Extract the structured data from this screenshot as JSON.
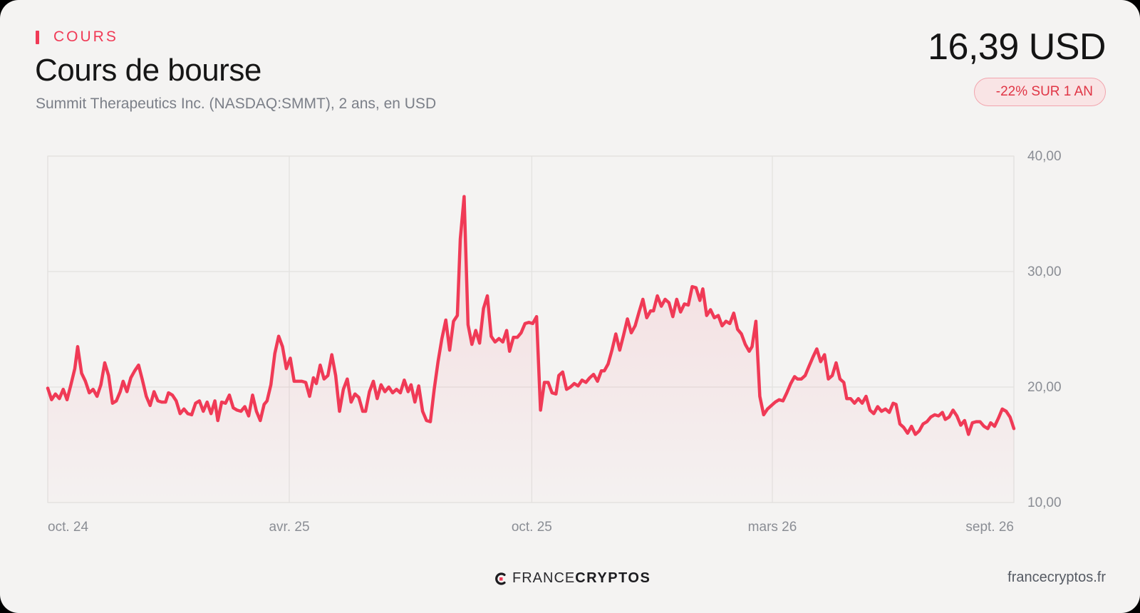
{
  "header": {
    "eyebrow": "COURS",
    "title": "Cours de bourse",
    "subtitle": "Summit Therapeutics Inc. (NASDAQ:SMMT), 2 ans, en USD",
    "price": "16,39 USD",
    "change_badge": "-22% SUR 1 AN"
  },
  "footer": {
    "logo_icon": "francecryptos-logo-icon",
    "logo_light": "FRANCE",
    "logo_bold": "CRYPTOS",
    "url": "francecryptos.fr"
  },
  "colors": {
    "accent": "#f03a56",
    "line": "#f03a56",
    "badge_text": "#e03545",
    "badge_bg": "#f9e4e5",
    "background": "#f4f3f2",
    "grid": "#e2e1df"
  },
  "chart_data": {
    "type": "line",
    "title": "Cours de bourse",
    "ylim": [
      10,
      40
    ],
    "y_ticks": [
      40,
      30,
      20,
      10
    ],
    "y_tick_labels": [
      "40,00",
      "30,00",
      "20,00",
      "10,00"
    ],
    "x_range": [
      0,
      100
    ],
    "x_ticks": [
      {
        "x": 0,
        "label": "oct. 24"
      },
      {
        "x": 25,
        "label": "avr. 25"
      },
      {
        "x": 50.1,
        "label": "oct. 25"
      },
      {
        "x": 75,
        "label": "mars 26"
      },
      {
        "x": 100,
        "label": "sept. 26"
      }
    ],
    "grid": true,
    "fill_under_line": true,
    "series": [
      {
        "points": [
          [
            0.0,
            19.9
          ],
          [
            0.4,
            18.9
          ],
          [
            0.8,
            19.4
          ],
          [
            1.2,
            19.0
          ],
          [
            1.6,
            19.8
          ],
          [
            2.0,
            18.9
          ],
          [
            2.4,
            20.2
          ],
          [
            2.8,
            21.6
          ],
          [
            3.1,
            23.5
          ],
          [
            3.5,
            21.2
          ],
          [
            3.9,
            20.5
          ],
          [
            4.3,
            19.5
          ],
          [
            4.7,
            19.8
          ],
          [
            5.1,
            19.2
          ],
          [
            5.5,
            20.2
          ],
          [
            5.9,
            22.1
          ],
          [
            6.3,
            21.0
          ],
          [
            6.7,
            18.6
          ],
          [
            7.1,
            18.8
          ],
          [
            7.5,
            19.6
          ],
          [
            7.8,
            20.5
          ],
          [
            8.2,
            19.6
          ],
          [
            8.6,
            20.8
          ],
          [
            9.0,
            21.4
          ],
          [
            9.4,
            21.9
          ],
          [
            9.8,
            20.6
          ],
          [
            10.2,
            19.2
          ],
          [
            10.6,
            18.4
          ],
          [
            11.0,
            19.6
          ],
          [
            11.4,
            18.8
          ],
          [
            11.8,
            18.7
          ],
          [
            12.2,
            18.7
          ],
          [
            12.5,
            19.5
          ],
          [
            12.9,
            19.3
          ],
          [
            13.3,
            18.8
          ],
          [
            13.7,
            17.7
          ],
          [
            14.1,
            18.1
          ],
          [
            14.5,
            17.7
          ],
          [
            14.9,
            17.6
          ],
          [
            15.3,
            18.6
          ],
          [
            15.7,
            18.8
          ],
          [
            16.1,
            17.9
          ],
          [
            16.5,
            18.7
          ],
          [
            16.9,
            17.7
          ],
          [
            17.3,
            18.8
          ],
          [
            17.6,
            17.1
          ],
          [
            18.0,
            18.7
          ],
          [
            18.4,
            18.6
          ],
          [
            18.8,
            19.3
          ],
          [
            19.2,
            18.2
          ],
          [
            19.6,
            18.0
          ],
          [
            20.0,
            17.9
          ],
          [
            20.4,
            18.3
          ],
          [
            20.8,
            17.5
          ],
          [
            21.2,
            19.3
          ],
          [
            21.6,
            17.9
          ],
          [
            22.0,
            17.1
          ],
          [
            22.4,
            18.5
          ],
          [
            22.7,
            18.8
          ],
          [
            23.1,
            20.2
          ],
          [
            23.5,
            22.9
          ],
          [
            23.9,
            24.4
          ],
          [
            24.3,
            23.5
          ],
          [
            24.7,
            21.6
          ],
          [
            25.1,
            22.5
          ],
          [
            25.5,
            20.5
          ],
          [
            25.9,
            20.5
          ],
          [
            26.3,
            20.5
          ],
          [
            26.7,
            20.4
          ],
          [
            27.1,
            19.2
          ],
          [
            27.5,
            20.8
          ],
          [
            27.8,
            20.3
          ],
          [
            28.2,
            21.9
          ],
          [
            28.6,
            20.7
          ],
          [
            29.0,
            21.0
          ],
          [
            29.4,
            22.8
          ],
          [
            29.8,
            21.0
          ],
          [
            30.2,
            17.9
          ],
          [
            30.6,
            19.8
          ],
          [
            31.0,
            20.7
          ],
          [
            31.4,
            18.7
          ],
          [
            31.8,
            19.4
          ],
          [
            32.2,
            19.1
          ],
          [
            32.6,
            17.9
          ],
          [
            32.9,
            17.9
          ],
          [
            33.3,
            19.6
          ],
          [
            33.7,
            20.5
          ],
          [
            34.1,
            19.0
          ],
          [
            34.5,
            20.2
          ],
          [
            34.9,
            19.6
          ],
          [
            35.3,
            20.0
          ],
          [
            35.7,
            19.5
          ],
          [
            36.1,
            19.8
          ],
          [
            36.5,
            19.5
          ],
          [
            36.9,
            20.6
          ],
          [
            37.3,
            19.6
          ],
          [
            37.6,
            20.2
          ],
          [
            38.0,
            18.7
          ],
          [
            38.4,
            20.1
          ],
          [
            38.8,
            17.9
          ],
          [
            39.2,
            17.1
          ],
          [
            39.6,
            17.0
          ],
          [
            40.0,
            19.8
          ],
          [
            40.4,
            22.2
          ],
          [
            40.8,
            24.2
          ],
          [
            41.2,
            25.8
          ],
          [
            41.6,
            23.2
          ],
          [
            42.0,
            25.7
          ],
          [
            42.4,
            26.2
          ],
          [
            42.7,
            32.8
          ],
          [
            43.1,
            36.5
          ],
          [
            43.5,
            25.4
          ],
          [
            43.9,
            23.7
          ],
          [
            44.3,
            24.9
          ],
          [
            44.7,
            23.8
          ],
          [
            45.1,
            26.8
          ],
          [
            45.5,
            27.9
          ],
          [
            45.9,
            24.4
          ],
          [
            46.3,
            23.9
          ],
          [
            46.7,
            24.2
          ],
          [
            47.1,
            23.9
          ],
          [
            47.5,
            24.9
          ],
          [
            47.8,
            23.1
          ],
          [
            48.2,
            24.3
          ],
          [
            48.6,
            24.3
          ],
          [
            49.0,
            24.7
          ],
          [
            49.4,
            25.5
          ],
          [
            49.8,
            25.6
          ],
          [
            50.2,
            25.5
          ],
          [
            50.6,
            26.1
          ],
          [
            51.0,
            18.0
          ],
          [
            51.4,
            20.4
          ],
          [
            51.8,
            20.4
          ],
          [
            52.2,
            19.5
          ],
          [
            52.6,
            19.4
          ],
          [
            52.9,
            21.0
          ],
          [
            53.3,
            21.3
          ],
          [
            53.7,
            19.8
          ],
          [
            54.1,
            20.0
          ],
          [
            54.5,
            20.3
          ],
          [
            54.9,
            20.1
          ],
          [
            55.3,
            20.6
          ],
          [
            55.7,
            20.4
          ],
          [
            56.1,
            20.8
          ],
          [
            56.5,
            21.1
          ],
          [
            56.9,
            20.5
          ],
          [
            57.3,
            21.4
          ],
          [
            57.6,
            21.4
          ],
          [
            58.0,
            22.0
          ],
          [
            58.4,
            23.2
          ],
          [
            58.8,
            24.6
          ],
          [
            59.2,
            23.2
          ],
          [
            59.6,
            24.5
          ],
          [
            60.0,
            25.9
          ],
          [
            60.4,
            24.7
          ],
          [
            60.8,
            25.3
          ],
          [
            61.2,
            26.5
          ],
          [
            61.6,
            27.6
          ],
          [
            62.0,
            26.0
          ],
          [
            62.4,
            26.6
          ],
          [
            62.7,
            26.6
          ],
          [
            63.1,
            27.9
          ],
          [
            63.5,
            27.0
          ],
          [
            63.9,
            27.6
          ],
          [
            64.3,
            27.3
          ],
          [
            64.7,
            26.1
          ],
          [
            65.1,
            27.6
          ],
          [
            65.5,
            26.5
          ],
          [
            65.9,
            27.2
          ],
          [
            66.3,
            27.1
          ],
          [
            66.7,
            28.7
          ],
          [
            67.1,
            28.6
          ],
          [
            67.5,
            27.5
          ],
          [
            67.8,
            28.5
          ],
          [
            68.2,
            26.2
          ],
          [
            68.6,
            26.7
          ],
          [
            69.0,
            26.0
          ],
          [
            69.4,
            26.2
          ],
          [
            69.8,
            25.3
          ],
          [
            70.2,
            25.7
          ],
          [
            70.6,
            25.5
          ],
          [
            71.0,
            26.4
          ],
          [
            71.4,
            25.0
          ],
          [
            71.8,
            24.6
          ],
          [
            72.2,
            23.7
          ],
          [
            72.6,
            23.1
          ],
          [
            72.9,
            23.5
          ],
          [
            73.3,
            25.7
          ],
          [
            73.7,
            19.2
          ],
          [
            74.1,
            17.6
          ],
          [
            74.5,
            18.1
          ],
          [
            74.9,
            18.4
          ],
          [
            75.3,
            18.7
          ],
          [
            75.7,
            18.9
          ],
          [
            76.1,
            18.8
          ],
          [
            76.5,
            19.5
          ],
          [
            76.9,
            20.3
          ],
          [
            77.3,
            20.9
          ],
          [
            77.6,
            20.7
          ],
          [
            78.0,
            20.7
          ],
          [
            78.4,
            21.0
          ],
          [
            78.8,
            21.8
          ],
          [
            79.2,
            22.6
          ],
          [
            79.6,
            23.3
          ],
          [
            80.0,
            22.2
          ],
          [
            80.4,
            22.8
          ],
          [
            80.8,
            20.7
          ],
          [
            81.2,
            21.0
          ],
          [
            81.6,
            22.1
          ],
          [
            82.0,
            20.7
          ],
          [
            82.4,
            20.4
          ],
          [
            82.7,
            19.0
          ],
          [
            83.1,
            19.0
          ],
          [
            83.5,
            18.6
          ],
          [
            83.9,
            19.0
          ],
          [
            84.3,
            18.6
          ],
          [
            84.7,
            19.2
          ],
          [
            85.1,
            18.0
          ],
          [
            85.5,
            17.7
          ],
          [
            85.9,
            18.3
          ],
          [
            86.3,
            17.9
          ],
          [
            86.7,
            18.1
          ],
          [
            87.1,
            17.8
          ],
          [
            87.5,
            18.6
          ],
          [
            87.8,
            18.5
          ],
          [
            88.2,
            16.8
          ],
          [
            88.6,
            16.5
          ],
          [
            89.0,
            16.0
          ],
          [
            89.4,
            16.6
          ],
          [
            89.8,
            15.9
          ],
          [
            90.2,
            16.2
          ],
          [
            90.6,
            16.8
          ],
          [
            91.0,
            17.0
          ],
          [
            91.4,
            17.4
          ],
          [
            91.8,
            17.6
          ],
          [
            92.2,
            17.5
          ],
          [
            92.6,
            17.8
          ],
          [
            92.9,
            17.2
          ],
          [
            93.3,
            17.4
          ],
          [
            93.7,
            18.0
          ],
          [
            94.1,
            17.5
          ],
          [
            94.5,
            16.7
          ],
          [
            94.9,
            17.1
          ],
          [
            95.3,
            15.9
          ],
          [
            95.7,
            16.9
          ],
          [
            96.1,
            17.0
          ],
          [
            96.5,
            17.0
          ],
          [
            96.9,
            16.6
          ],
          [
            97.3,
            16.4
          ],
          [
            97.6,
            16.9
          ],
          [
            98.0,
            16.6
          ],
          [
            98.4,
            17.3
          ],
          [
            98.8,
            18.1
          ],
          [
            99.2,
            17.9
          ],
          [
            99.6,
            17.4
          ],
          [
            100.0,
            16.4
          ]
        ]
      }
    ]
  }
}
